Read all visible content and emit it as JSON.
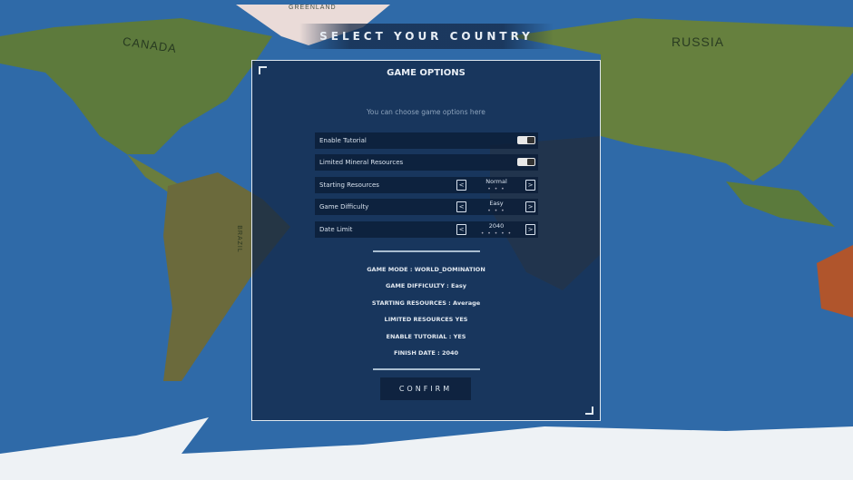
{
  "map": {
    "labels": [
      "GREENLAND",
      "CANADA",
      "RUSSIA",
      "BRAZIL"
    ]
  },
  "header": {
    "title": "SELECT YOUR COUNTRY"
  },
  "panel": {
    "title": "GAME OPTIONS",
    "subtitle": "You can choose game options here",
    "options": [
      {
        "label": "Enable Tutorial",
        "type": "toggle",
        "on": true
      },
      {
        "label": "Limited Mineral Resources",
        "type": "toggle",
        "on": true
      },
      {
        "label": "Starting Resources",
        "type": "stepper",
        "value": "Normal",
        "dots": "• • •"
      },
      {
        "label": "Game Difficulty",
        "type": "stepper",
        "value": "Easy",
        "dots": "• • •"
      },
      {
        "label": "Date Limit",
        "type": "stepper",
        "value": "2040",
        "dots": "• • • • •"
      }
    ],
    "summary": [
      "GAME MODE : WORLD_DOMINATION",
      "GAME DIFFICULTY : Easy",
      "STARTING RESOURCES : Average",
      "LIMITED RESOURCES YES",
      "ENABLE TUTORIAL : YES",
      "FINISH DATE : 2040"
    ],
    "confirm_label": "CONFIRM",
    "prev_icon": "chevron-left-icon",
    "next_icon": "chevron-right-icon"
  }
}
